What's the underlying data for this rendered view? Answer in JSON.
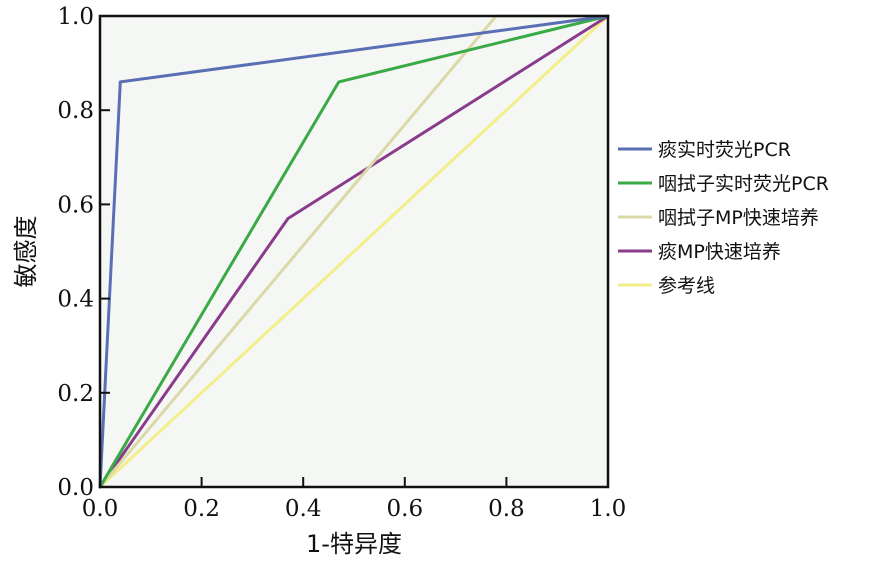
{
  "chart_data": {
    "type": "line",
    "xlabel": "1-特异度",
    "ylabel": "敏感度",
    "xlim": [
      0,
      1
    ],
    "ylim": [
      0,
      1
    ],
    "x_ticks": [
      "0.0",
      "0.2",
      "0.4",
      "0.6",
      "0.8",
      "1.0"
    ],
    "y_ticks": [
      "0.0",
      "0.2",
      "0.4",
      "0.6",
      "0.8",
      "1.0"
    ],
    "grid": false,
    "legend_position": "right",
    "background": "#f5f7f5",
    "series": [
      {
        "name": "痰实时荧光PCR",
        "color": "#5a6eb4",
        "points": [
          [
            0,
            0
          ],
          [
            0.04,
            0.86
          ],
          [
            1,
            1
          ]
        ]
      },
      {
        "name": "咽拭子实时荧光PCR",
        "color": "#3aaa46",
        "points": [
          [
            0,
            0
          ],
          [
            0.47,
            0.86
          ],
          [
            1,
            1
          ]
        ]
      },
      {
        "name": "咽拭子MP快速培养",
        "color": "#dcd8a8",
        "points": [
          [
            0,
            0
          ],
          [
            0.78,
            1.0
          ],
          [
            1,
            1
          ]
        ]
      },
      {
        "name": "痰MP快速培养",
        "color": "#8a3c8c",
        "points": [
          [
            0,
            0
          ],
          [
            0.37,
            0.57
          ],
          [
            1,
            1
          ]
        ]
      },
      {
        "name": "参考线",
        "color": "#f4ee8a",
        "points": [
          [
            0,
            0
          ],
          [
            1,
            1
          ]
        ]
      }
    ]
  }
}
